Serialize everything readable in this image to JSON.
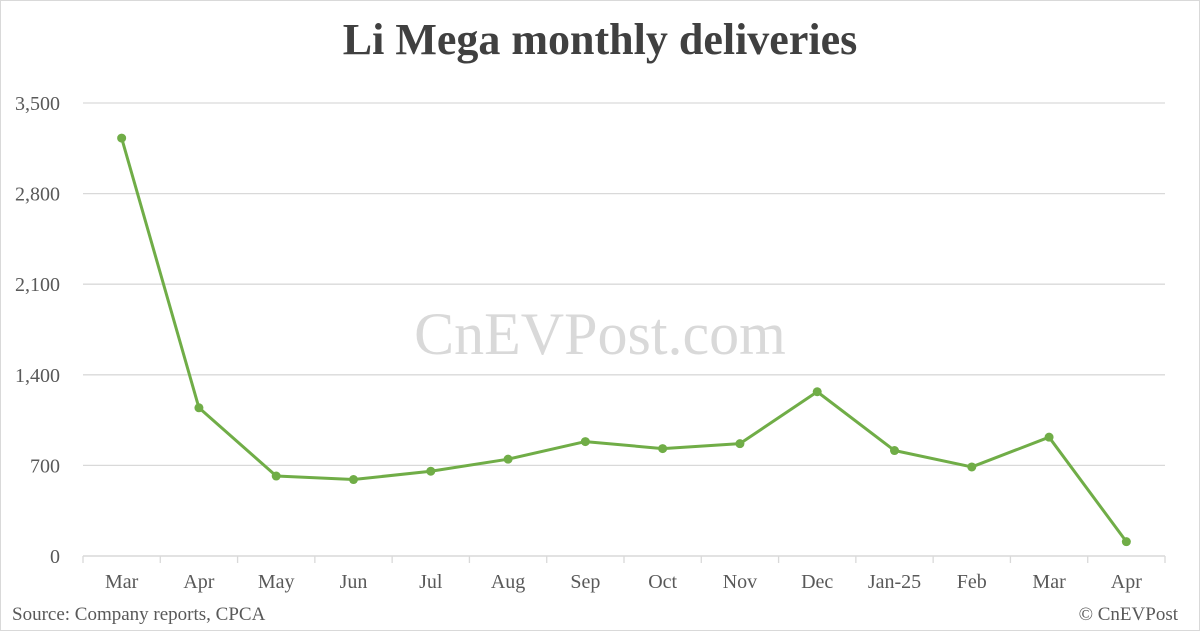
{
  "colors": {
    "line": "#70ad47",
    "grid": "#d9d9d9",
    "text": "#595959",
    "title": "#404040",
    "watermark": "#d9d9d9"
  },
  "watermark": "CnEVPost.com",
  "source": "Source: Company reports, CPCA",
  "copyright": "© CnEVPost",
  "chart_data": {
    "type": "line",
    "title": "Li Mega monthly deliveries",
    "xlabel": "",
    "ylabel": "",
    "categories": [
      "Mar",
      "Apr",
      "May",
      "Jun",
      "Jul",
      "Aug",
      "Sep",
      "Oct",
      "Nov",
      "Dec",
      "Jan-25",
      "Feb",
      "Mar",
      "Apr"
    ],
    "y_ticks": [
      "0",
      "700",
      "1,400",
      "2,100",
      "2,800",
      "3,500"
    ],
    "y_tick_values": [
      0,
      700,
      1400,
      2100,
      2800,
      3500
    ],
    "ylim": [
      0,
      3500
    ],
    "grid": true,
    "legend": "none",
    "series": [
      {
        "values": [
          3229,
          1145,
          618,
          591,
          655,
          748,
          884,
          830,
          868,
          1269,
          815,
          688,
          918,
          111
        ]
      }
    ]
  }
}
